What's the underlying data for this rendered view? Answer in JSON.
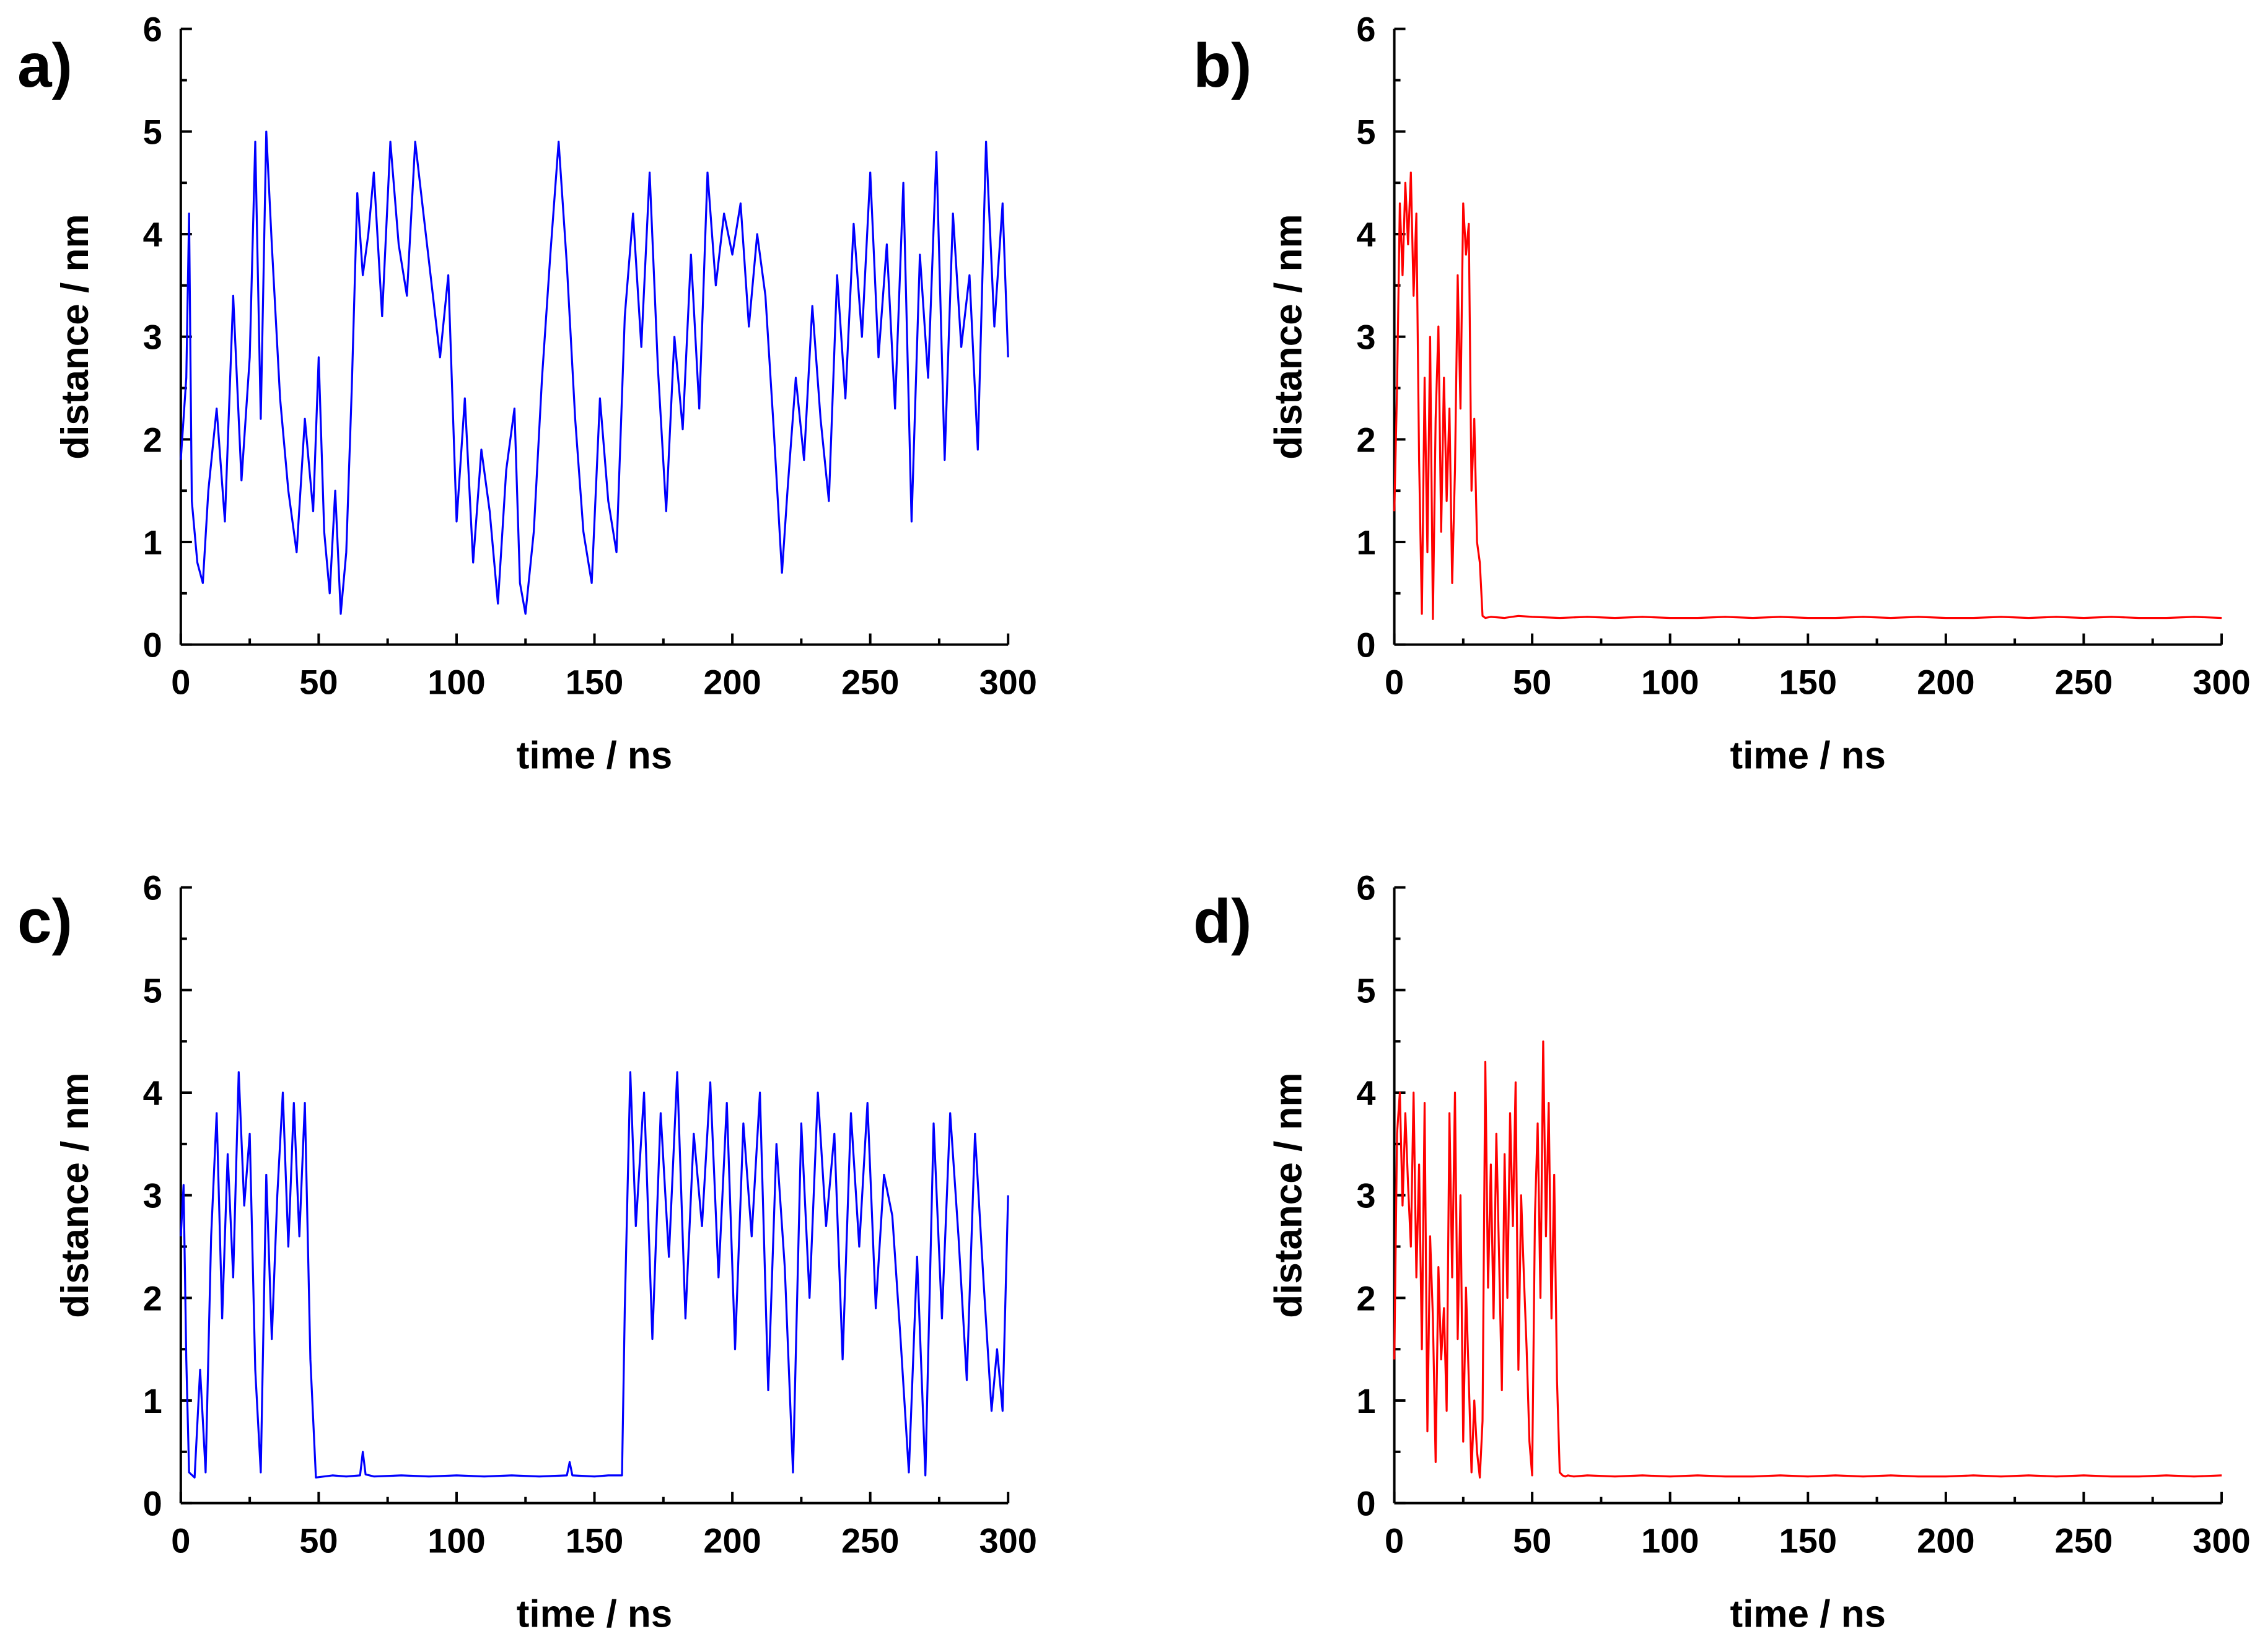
{
  "chart_data": [
    {
      "panel": "a)",
      "type": "line",
      "color": "#0000ff",
      "xlabel": "time / ns",
      "ylabel": "distance / nm",
      "xlim": [
        0,
        300
      ],
      "ylim": [
        0,
        6
      ],
      "x_ticks": [
        "0",
        "50",
        "100",
        "150",
        "200",
        "250",
        "300"
      ],
      "y_ticks": [
        "0",
        "1",
        "2",
        "3",
        "4",
        "5",
        "6"
      ],
      "series": [
        {
          "name": "a",
          "x": [
            0,
            2,
            3,
            4,
            6,
            8,
            10,
            13,
            16,
            19,
            22,
            25,
            27,
            29,
            31,
            33,
            36,
            39,
            42,
            45,
            48,
            50,
            52,
            54,
            56,
            58,
            60,
            62,
            64,
            66,
            68,
            70,
            73,
            76,
            79,
            82,
            85,
            88,
            91,
            94,
            97,
            100,
            103,
            106,
            109,
            112,
            115,
            118,
            121,
            123,
            125,
            128,
            131,
            134,
            137,
            140,
            143,
            146,
            149,
            152,
            155,
            158,
            161,
            164,
            167,
            170,
            173,
            176,
            179,
            182,
            185,
            188,
            191,
            194,
            197,
            200,
            203,
            206,
            209,
            212,
            215,
            218,
            220,
            223,
            226,
            229,
            232,
            235,
            238,
            241,
            244,
            247,
            250,
            253,
            256,
            259,
            262,
            265,
            268,
            271,
            274,
            277,
            280,
            283,
            286,
            289,
            292,
            295,
            298,
            300
          ],
          "y": [
            1.8,
            2.6,
            4.2,
            1.4,
            0.8,
            0.6,
            1.5,
            2.3,
            1.2,
            3.4,
            1.6,
            2.8,
            4.9,
            2.2,
            5.0,
            3.9,
            2.4,
            1.5,
            0.9,
            2.2,
            1.3,
            2.8,
            1.1,
            0.5,
            1.5,
            0.3,
            0.9,
            2.5,
            4.4,
            3.6,
            4.0,
            4.6,
            3.2,
            4.9,
            3.9,
            3.4,
            4.9,
            4.2,
            3.5,
            2.8,
            3.6,
            1.2,
            2.4,
            0.8,
            1.9,
            1.3,
            0.4,
            1.7,
            2.3,
            0.6,
            0.3,
            1.1,
            2.6,
            3.8,
            4.9,
            3.7,
            2.2,
            1.1,
            0.6,
            2.4,
            1.4,
            0.9,
            3.2,
            4.2,
            2.9,
            4.6,
            2.7,
            1.3,
            3.0,
            2.1,
            3.8,
            2.3,
            4.6,
            3.5,
            4.2,
            3.8,
            4.3,
            3.1,
            4.0,
            3.4,
            2.1,
            0.7,
            1.5,
            2.6,
            1.8,
            3.3,
            2.2,
            1.4,
            3.6,
            2.4,
            4.1,
            3.0,
            4.6,
            2.8,
            3.9,
            2.3,
            4.5,
            1.2,
            3.8,
            2.6,
            4.8,
            1.8,
            4.2,
            2.9,
            3.6,
            1.9,
            4.9,
            3.1,
            4.3,
            2.8
          ]
        }
      ]
    },
    {
      "panel": "b)",
      "type": "line",
      "color": "#ff0000",
      "xlabel": "time / ns",
      "ylabel": "distance / nm",
      "xlim": [
        0,
        300
      ],
      "ylim": [
        0,
        6
      ],
      "x_ticks": [
        "0",
        "50",
        "100",
        "150",
        "200",
        "250",
        "300"
      ],
      "y_ticks": [
        "0",
        "1",
        "2",
        "3",
        "4",
        "5",
        "6"
      ],
      "series": [
        {
          "name": "b",
          "x": [
            0,
            1,
            2,
            3,
            4,
            5,
            6,
            7,
            8,
            9,
            10,
            11,
            12,
            13,
            14,
            15,
            16,
            17,
            18,
            19,
            20,
            21,
            22,
            23,
            24,
            25,
            26,
            27,
            28,
            29,
            30,
            31,
            32,
            33,
            35,
            40,
            45,
            50,
            60,
            70,
            80,
            90,
            100,
            110,
            120,
            130,
            140,
            150,
            160,
            170,
            180,
            190,
            200,
            210,
            220,
            230,
            240,
            250,
            260,
            270,
            280,
            290,
            300
          ],
          "y": [
            1.3,
            2.5,
            4.3,
            3.6,
            4.5,
            3.9,
            4.6,
            3.4,
            4.2,
            1.8,
            0.3,
            2.6,
            0.9,
            3.0,
            0.25,
            2.2,
            3.1,
            1.1,
            2.6,
            1.4,
            2.3,
            0.6,
            1.7,
            3.6,
            2.3,
            4.3,
            3.8,
            4.1,
            1.5,
            2.2,
            1.0,
            0.8,
            0.28,
            0.26,
            0.27,
            0.26,
            0.28,
            0.27,
            0.26,
            0.27,
            0.26,
            0.27,
            0.26,
            0.26,
            0.27,
            0.26,
            0.27,
            0.26,
            0.26,
            0.27,
            0.26,
            0.27,
            0.26,
            0.26,
            0.27,
            0.26,
            0.27,
            0.26,
            0.27,
            0.26,
            0.26,
            0.27,
            0.26
          ]
        }
      ]
    },
    {
      "panel": "c)",
      "type": "line",
      "color": "#0000ff",
      "xlabel": "time / ns",
      "ylabel": "distance / nm",
      "xlim": [
        0,
        300
      ],
      "ylim": [
        0,
        6
      ],
      "x_ticks": [
        "0",
        "50",
        "100",
        "150",
        "200",
        "250",
        "300"
      ],
      "y_ticks": [
        "0",
        "1",
        "2",
        "3",
        "4",
        "5",
        "6"
      ],
      "series": [
        {
          "name": "c",
          "x": [
            0,
            1,
            2,
            3,
            5,
            7,
            9,
            11,
            13,
            15,
            17,
            19,
            21,
            23,
            25,
            27,
            29,
            31,
            33,
            35,
            37,
            39,
            41,
            43,
            45,
            47,
            49,
            55,
            60,
            65,
            66,
            67,
            70,
            80,
            90,
            100,
            110,
            120,
            130,
            140,
            141,
            142,
            150,
            155,
            160,
            161,
            163,
            165,
            168,
            171,
            174,
            177,
            180,
            183,
            186,
            189,
            192,
            195,
            198,
            201,
            204,
            207,
            210,
            213,
            216,
            219,
            222,
            225,
            228,
            231,
            234,
            237,
            240,
            243,
            246,
            249,
            252,
            255,
            258,
            261,
            264,
            267,
            270,
            273,
            276,
            279,
            282,
            285,
            288,
            291,
            294,
            296,
            298,
            300
          ],
          "y": [
            2.6,
            3.1,
            1.4,
            0.3,
            0.25,
            1.3,
            0.3,
            2.6,
            3.8,
            1.8,
            3.4,
            2.2,
            4.2,
            2.9,
            3.6,
            1.3,
            0.3,
            3.2,
            1.6,
            3.0,
            4.0,
            2.5,
            3.9,
            2.6,
            3.9,
            1.4,
            0.25,
            0.27,
            0.26,
            0.27,
            0.5,
            0.28,
            0.26,
            0.27,
            0.26,
            0.27,
            0.26,
            0.27,
            0.26,
            0.27,
            0.4,
            0.27,
            0.26,
            0.27,
            0.27,
            1.9,
            4.2,
            2.7,
            4.0,
            1.6,
            3.8,
            2.4,
            4.2,
            1.8,
            3.6,
            2.7,
            4.1,
            2.2,
            3.9,
            1.5,
            3.7,
            2.6,
            4.0,
            1.1,
            3.5,
            2.3,
            0.3,
            3.7,
            2.0,
            4.0,
            2.7,
            3.6,
            1.4,
            3.8,
            2.5,
            3.9,
            1.9,
            3.2,
            2.8,
            1.6,
            0.3,
            2.4,
            0.27,
            3.7,
            1.8,
            3.8,
            2.6,
            1.2,
            3.6,
            2.2,
            0.9,
            1.5,
            0.9,
            3.0
          ]
        }
      ]
    },
    {
      "panel": "d)",
      "type": "line",
      "color": "#ff0000",
      "xlabel": "time / ns",
      "ylabel": "distance / nm",
      "xlim": [
        0,
        300
      ],
      "ylim": [
        0,
        6
      ],
      "x_ticks": [
        "0",
        "50",
        "100",
        "150",
        "200",
        "250",
        "300"
      ],
      "y_ticks": [
        "0",
        "1",
        "2",
        "3",
        "4",
        "5",
        "6"
      ],
      "series": [
        {
          "name": "d",
          "x": [
            0,
            1,
            2,
            3,
            4,
            5,
            6,
            7,
            8,
            9,
            10,
            11,
            12,
            13,
            14,
            15,
            16,
            17,
            18,
            19,
            20,
            21,
            22,
            23,
            24,
            25,
            26,
            27,
            28,
            29,
            30,
            31,
            32,
            33,
            34,
            35,
            36,
            37,
            38,
            39,
            40,
            41,
            42,
            43,
            44,
            45,
            46,
            47,
            48,
            49,
            50,
            51,
            52,
            53,
            54,
            55,
            56,
            57,
            58,
            59,
            60,
            61,
            62,
            63,
            65,
            70,
            80,
            90,
            100,
            110,
            120,
            130,
            140,
            150,
            160,
            170,
            180,
            190,
            200,
            210,
            220,
            230,
            240,
            250,
            260,
            270,
            280,
            290,
            300
          ],
          "y": [
            1.4,
            3.6,
            4.0,
            2.9,
            3.8,
            3.1,
            2.5,
            4.0,
            2.2,
            3.3,
            1.5,
            3.9,
            0.7,
            2.6,
            1.8,
            0.4,
            2.3,
            1.4,
            1.9,
            0.9,
            3.8,
            2.2,
            4.0,
            1.6,
            3.0,
            0.6,
            2.1,
            1.2,
            0.3,
            1.0,
            0.5,
            0.25,
            0.8,
            4.3,
            2.1,
            3.3,
            1.8,
            3.6,
            2.4,
            1.1,
            3.4,
            2.0,
            3.8,
            2.7,
            4.1,
            1.3,
            3.0,
            2.2,
            1.5,
            0.6,
            0.27,
            2.8,
            3.7,
            2.0,
            4.5,
            2.6,
            3.9,
            1.8,
            3.2,
            1.2,
            0.3,
            0.27,
            0.26,
            0.27,
            0.26,
            0.27,
            0.26,
            0.27,
            0.26,
            0.27,
            0.26,
            0.26,
            0.27,
            0.26,
            0.27,
            0.26,
            0.27,
            0.26,
            0.26,
            0.27,
            0.26,
            0.27,
            0.26,
            0.27,
            0.26,
            0.26,
            0.27,
            0.26,
            0.27
          ]
        }
      ]
    }
  ]
}
